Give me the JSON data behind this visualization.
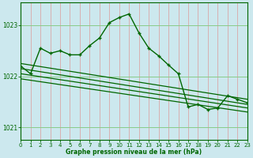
{
  "title": "Graphe pression niveau de la mer (hPa)",
  "background_color": "#cce8ee",
  "grid_color_v": "#dd9999",
  "grid_color_h": "#88cc88",
  "line_color": "#006600",
  "marker_color": "#006600",
  "ylim": [
    1020.75,
    1023.45
  ],
  "yticks": [
    1021,
    1022,
    1023
  ],
  "xlim": [
    0,
    23
  ],
  "xticks": [
    0,
    1,
    2,
    3,
    4,
    5,
    6,
    7,
    8,
    9,
    10,
    11,
    12,
    13,
    14,
    15,
    16,
    17,
    18,
    19,
    20,
    21,
    22,
    23
  ],
  "straight_lines": [
    [
      [
        0,
        23
      ],
      [
        1022.25,
        1021.55
      ]
    ],
    [
      [
        0,
        23
      ],
      [
        1022.15,
        1021.45
      ]
    ],
    [
      [
        0,
        23
      ],
      [
        1022.05,
        1021.38
      ]
    ],
    [
      [
        0,
        23
      ],
      [
        1021.95,
        1021.3
      ]
    ]
  ],
  "main_series_x": [
    0,
    1,
    2,
    3,
    4,
    5,
    6,
    7,
    8,
    9,
    10,
    11,
    12,
    13,
    14,
    15,
    16,
    17,
    18,
    19,
    20,
    21,
    22,
    23
  ],
  "main_series_y": [
    1022.2,
    1022.05,
    1022.55,
    1022.45,
    1022.5,
    1022.42,
    1022.42,
    1022.6,
    1022.75,
    1023.05,
    1023.15,
    1023.22,
    1022.85,
    1022.55,
    1022.4,
    1022.22,
    1022.05,
    1021.4,
    1021.45,
    1021.35,
    1021.38,
    1021.62,
    1021.55,
    1021.48
  ]
}
